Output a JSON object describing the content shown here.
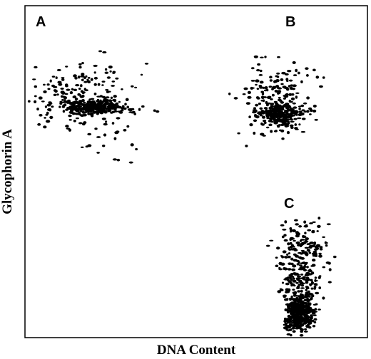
{
  "chart_data": {
    "type": "scatter",
    "xlabel": "DNA Content",
    "ylabel": "Glycophorin A",
    "annotations": [
      "A",
      "B",
      "C"
    ],
    "color": "#000000"
  }
}
